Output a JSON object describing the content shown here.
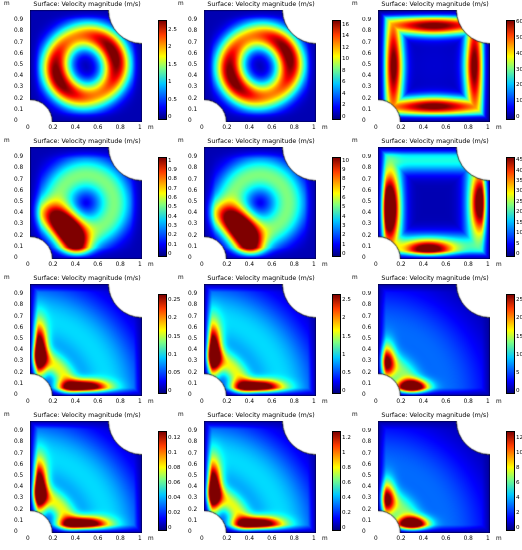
{
  "figure": {
    "panel_title": "Surface: Velocity magnitude (m/s)",
    "x_ticks": [
      "0",
      "0.2",
      "0.4",
      "0.6",
      "0.8",
      "1"
    ],
    "y_ticks": [
      "0",
      "0.1",
      "0.2",
      "0.3",
      "0.4",
      "0.5",
      "0.6",
      "0.7",
      "0.8",
      "0.9"
    ],
    "unit": "m"
  },
  "chart_data": [
    {
      "type": "heatmap",
      "title": "Surface: Velocity magnitude (m/s)",
      "xlabel": "m",
      "ylabel": "m",
      "xlim": [
        0,
        1
      ],
      "ylim": [
        0,
        1
      ],
      "colorbar_ticks": [
        "0",
        "0.5",
        "1",
        "1.5",
        "2",
        "2.5"
      ],
      "colorbar_range": [
        0,
        2.8
      ],
      "pattern": "ring"
    },
    {
      "type": "heatmap",
      "title": "Surface: Velocity magnitude (m/s)",
      "xlabel": "m",
      "ylabel": "m",
      "xlim": [
        0,
        1
      ],
      "ylim": [
        0,
        1
      ],
      "colorbar_ticks": [
        "0",
        "2",
        "4",
        "6",
        "8",
        "10",
        "12",
        "14",
        "16"
      ],
      "colorbar_range": [
        0,
        17
      ],
      "pattern": "ring"
    },
    {
      "type": "heatmap",
      "title": "Surface: Velocity magnitude (m/s)",
      "xlabel": "m",
      "ylabel": "m",
      "xlim": [
        0,
        1
      ],
      "ylim": [
        0,
        1
      ],
      "colorbar_ticks": [
        "0",
        "10",
        "20",
        "30",
        "40",
        "50",
        "60"
      ],
      "colorbar_range": [
        0,
        62
      ],
      "pattern": "square-ring"
    },
    {
      "type": "heatmap",
      "title": "Surface: Velocity magnitude (m/s)",
      "xlabel": "m",
      "ylabel": "m",
      "xlim": [
        0,
        1
      ],
      "ylim": [
        0,
        1
      ],
      "colorbar_ticks": [
        "0",
        "0.1",
        "0.2",
        "0.3",
        "0.4",
        "0.5",
        "0.6",
        "0.7",
        "0.8",
        "0.9",
        "1"
      ],
      "colorbar_range": [
        0,
        1.05
      ],
      "pattern": "crescent"
    },
    {
      "type": "heatmap",
      "title": "Surface: Velocity magnitude (m/s)",
      "xlabel": "m",
      "ylabel": "m",
      "xlim": [
        0,
        1
      ],
      "ylim": [
        0,
        1
      ],
      "colorbar_ticks": [
        "0",
        "1",
        "2",
        "3",
        "4",
        "5",
        "6",
        "7",
        "8",
        "9",
        "10"
      ],
      "colorbar_range": [
        0,
        10.5
      ],
      "pattern": "crescent"
    },
    {
      "type": "heatmap",
      "title": "Surface: Velocity magnitude (m/s)",
      "xlabel": "m",
      "ylabel": "m",
      "xlim": [
        0,
        1
      ],
      "ylim": [
        0,
        1
      ],
      "colorbar_ticks": [
        "0",
        "5",
        "10",
        "15",
        "20",
        "25",
        "30",
        "35",
        "40",
        "45"
      ],
      "colorbar_range": [
        0,
        47
      ],
      "pattern": "side-lobes"
    },
    {
      "type": "heatmap",
      "title": "Surface: Velocity magnitude (m/s)",
      "xlabel": "m",
      "ylabel": "m",
      "xlim": [
        0,
        1
      ],
      "ylim": [
        0,
        1
      ],
      "colorbar_ticks": [
        "0",
        "0.05",
        "0.1",
        "0.15",
        "0.2",
        "0.25"
      ],
      "colorbar_range": [
        0,
        0.27
      ],
      "pattern": "corner-L"
    },
    {
      "type": "heatmap",
      "title": "Surface: Velocity magnitude (m/s)",
      "xlabel": "m",
      "ylabel": "m",
      "xlim": [
        0,
        1
      ],
      "ylim": [
        0,
        1
      ],
      "colorbar_ticks": [
        "0",
        "0.5",
        "1",
        "1.5",
        "2",
        "2.5"
      ],
      "colorbar_range": [
        0,
        2.7
      ],
      "pattern": "corner-L"
    },
    {
      "type": "heatmap",
      "title": "Surface: Velocity magnitude (m/s)",
      "xlabel": "m",
      "ylabel": "m",
      "xlim": [
        0,
        1
      ],
      "ylim": [
        0,
        1
      ],
      "colorbar_ticks": [
        "0",
        "5",
        "10",
        "15",
        "20",
        "25"
      ],
      "colorbar_range": [
        0,
        27
      ],
      "pattern": "corner-small"
    },
    {
      "type": "heatmap",
      "title": "Surface: Velocity magnitude (m/s)",
      "xlabel": "m",
      "ylabel": "m",
      "xlim": [
        0,
        1
      ],
      "ylim": [
        0,
        1
      ],
      "colorbar_ticks": [
        "0",
        "0.02",
        "0.04",
        "0.06",
        "0.08",
        "0.1",
        "0.12"
      ],
      "colorbar_range": [
        0,
        0.13
      ],
      "pattern": "corner-L"
    },
    {
      "type": "heatmap",
      "title": "Surface: Velocity magnitude (m/s)",
      "xlabel": "m",
      "ylabel": "m",
      "xlim": [
        0,
        1
      ],
      "ylim": [
        0,
        1
      ],
      "colorbar_ticks": [
        "0",
        "0.2",
        "0.4",
        "0.6",
        "0.8",
        "1",
        "1.2"
      ],
      "colorbar_range": [
        0,
        1.3
      ],
      "pattern": "corner-L"
    },
    {
      "type": "heatmap",
      "title": "Surface: Velocity magnitude (m/s)",
      "xlabel": "m",
      "ylabel": "m",
      "xlim": [
        0,
        1
      ],
      "ylim": [
        0,
        1
      ],
      "colorbar_ticks": [
        "0",
        "2",
        "4",
        "6",
        "8",
        "10",
        "12"
      ],
      "colorbar_range": [
        0,
        13
      ],
      "pattern": "corner-small"
    }
  ]
}
